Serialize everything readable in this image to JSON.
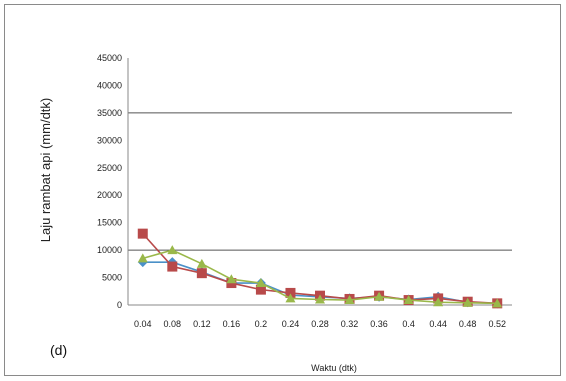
{
  "chart_data": {
    "type": "line",
    "title": "",
    "panel_label": "(d)",
    "xlabel": "Waktu (dtk)",
    "ylabel": "Laju rambat api (mm/dtk)",
    "x": [
      0.04,
      0.08,
      0.12,
      0.16,
      0.2,
      0.24,
      0.28,
      0.32,
      0.36,
      0.4,
      0.44,
      0.48,
      0.52
    ],
    "x_tick_labels": [
      "0.04",
      "0.08",
      "0.12",
      "0.16",
      "0.2",
      "0.24",
      "0.28",
      "0.32",
      "0.36",
      "0.4",
      "0.44",
      "0.48",
      "0.52"
    ],
    "ylim": [
      0,
      45000
    ],
    "y_ticks": [
      0,
      5000,
      10000,
      15000,
      20000,
      25000,
      30000,
      35000,
      40000,
      45000
    ],
    "y_gridlines": [
      10000,
      35000
    ],
    "legend": "none",
    "series": [
      {
        "color": "#4a90c8",
        "marker": "diamond",
        "values": [
          7800,
          7800,
          6000,
          4000,
          4000,
          1800,
          1500,
          1200,
          1500,
          1000,
          1500,
          500,
          300
        ]
      },
      {
        "color": "#b84a4a",
        "marker": "square",
        "values": [
          13000,
          7000,
          5800,
          4000,
          2800,
          2200,
          1700,
          1100,
          1700,
          900,
          1200,
          600,
          300
        ]
      },
      {
        "color": "#9ab84a",
        "marker": "triangle",
        "values": [
          8500,
          10000,
          7500,
          4700,
          4000,
          1200,
          1000,
          900,
          1500,
          900,
          500,
          400,
          300
        ]
      }
    ]
  }
}
